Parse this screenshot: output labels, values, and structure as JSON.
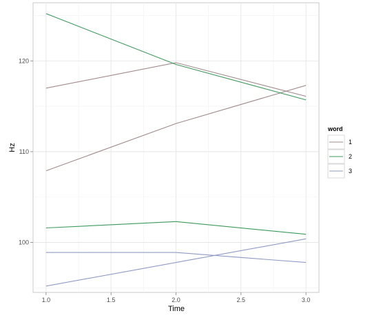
{
  "chart_data": {
    "type": "line",
    "xlabel": "Time",
    "ylabel": "Hz",
    "xlim": [
      0.9,
      3.1
    ],
    "ylim": [
      94.5,
      126.4
    ],
    "xticks": [
      "1.0",
      "1.5",
      "2.0",
      "2.5",
      "3.0"
    ],
    "xtick_values": [
      1.0,
      1.5,
      2.0,
      2.5,
      3.0
    ],
    "yticks": [
      "100",
      "110",
      "120"
    ],
    "ytick_values": [
      100,
      110,
      120
    ],
    "grid": true,
    "legend": {
      "title": "word",
      "placement": "right",
      "entries": [
        {
          "label": "1",
          "color": "#a08a8a"
        },
        {
          "label": "2",
          "color": "#3a9a5a"
        },
        {
          "label": "3",
          "color": "#8f9ac4"
        }
      ]
    },
    "x": [
      1.0,
      2.0,
      3.0
    ],
    "series": [
      {
        "word": "1",
        "color": "#a08a8a",
        "values": [
          117.0,
          119.8,
          116.1
        ]
      },
      {
        "word": "1",
        "color": "#a08a8a",
        "values": [
          107.9,
          113.1,
          117.3
        ]
      },
      {
        "word": "2",
        "color": "#3a9a5a",
        "values": [
          125.2,
          119.6,
          115.7
        ]
      },
      {
        "word": "2",
        "color": "#3a9a5a",
        "values": [
          101.6,
          102.3,
          100.9
        ]
      },
      {
        "word": "3",
        "color": "#8f9ac4",
        "values": [
          98.9,
          98.9,
          97.8
        ]
      },
      {
        "word": "3",
        "color": "#8f9ac4",
        "values": [
          95.2,
          97.8,
          100.4
        ]
      }
    ]
  }
}
